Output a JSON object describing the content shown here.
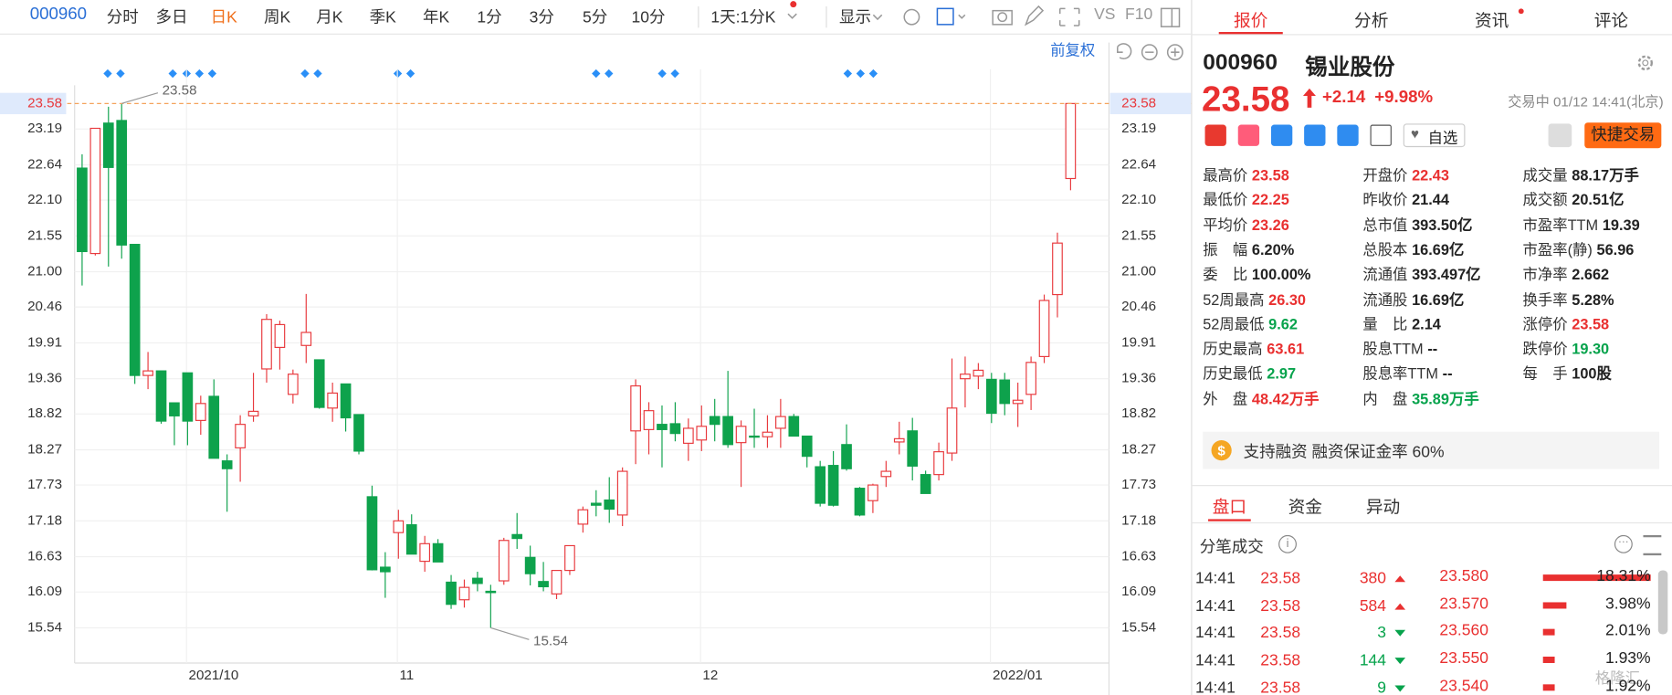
{
  "toolbar": {
    "code": "000960",
    "tabs": [
      "分时",
      "多日",
      "日K",
      "周K",
      "月K",
      "季K",
      "年K",
      "1分",
      "3分",
      "5分",
      "10分",
      "1天:1分K",
      "显示",
      "VS",
      "F10"
    ],
    "active": "日K"
  },
  "chart_data": {
    "type": "candlestick",
    "adjust": "前复权",
    "categories": [
      null,
      null,
      null,
      null,
      null,
      null,
      null,
      null,
      "2021/10",
      null,
      null,
      null,
      null,
      null,
      null,
      null,
      null,
      null,
      null,
      null,
      null,
      null,
      null,
      null,
      "11",
      null,
      null,
      null,
      null,
      null,
      null,
      null,
      null,
      null,
      null,
      null,
      null,
      null,
      null,
      null,
      null,
      null,
      null,
      null,
      null,
      null,
      null,
      "12",
      null,
      null,
      null,
      null,
      null,
      null,
      null,
      null,
      null,
      null,
      null,
      null,
      null,
      null,
      null,
      null,
      null,
      null,
      null,
      null,
      null,
      "2022/01",
      null,
      null,
      null,
      null,
      null,
      null
    ],
    "open": [
      22.59,
      21.28,
      23.28,
      23.32,
      21.42,
      19.41,
      19.48,
      18.99,
      19.45,
      18.72,
      19.09,
      18.1,
      18.3,
      18.79,
      19.51,
      19.84,
      19.12,
      19.87,
      19.65,
      18.91,
      19.28,
      18.81,
      17.55,
      16.47,
      17.0,
      17.12,
      16.56,
      16.83,
      16.24,
      15.97,
      16.3,
      16.1,
      16.26,
      16.97,
      16.62,
      16.25,
      16.06,
      16.42,
      17.13,
      17.45,
      17.5,
      17.27,
      18.56,
      18.58,
      18.66,
      18.67,
      18.37,
      18.42,
      18.78,
      18.78,
      18.38,
      18.48,
      18.47,
      18.6,
      18.78,
      18.48,
      18.01,
      18.03,
      18.35,
      17.68,
      17.49,
      17.86,
      18.39,
      18.56,
      17.89,
      17.89,
      18.22,
      19.36,
      19.4,
      19.35,
      19.34,
      18.98,
      19.12,
      19.7,
      20.65,
      22.43
    ],
    "high": [
      22.8,
      23.2,
      23.53,
      23.58,
      21.42,
      19.77,
      19.48,
      18.99,
      19.45,
      19.1,
      19.35,
      18.2,
      18.8,
      19.45,
      20.35,
      20.25,
      19.5,
      20.66,
      19.65,
      19.3,
      19.28,
      18.81,
      17.72,
      16.7,
      17.35,
      17.28,
      16.95,
      16.9,
      16.35,
      16.28,
      16.4,
      16.2,
      16.92,
      17.3,
      16.8,
      16.55,
      16.42,
      16.8,
      17.4,
      17.65,
      17.85,
      18.0,
      19.35,
      19.0,
      18.95,
      19.0,
      18.75,
      18.95,
      19.05,
      19.48,
      18.72,
      18.9,
      18.8,
      19.05,
      18.82,
      18.48,
      18.1,
      18.25,
      18.66,
      17.7,
      17.75,
      18.1,
      18.7,
      18.76,
      17.95,
      18.38,
      19.67,
      19.7,
      19.6,
      19.45,
      19.45,
      19.3,
      19.7,
      20.65,
      21.6,
      23.58
    ],
    "low": [
      20.79,
      21.25,
      21.08,
      21.2,
      19.28,
      19.2,
      18.67,
      18.34,
      18.34,
      18.5,
      18.14,
      17.32,
      17.78,
      18.7,
      19.3,
      19.5,
      18.98,
      19.6,
      18.9,
      18.7,
      18.55,
      18.2,
      16.42,
      16.0,
      16.6,
      16.67,
      16.4,
      16.55,
      15.83,
      15.85,
      16.1,
      15.54,
      16.2,
      16.75,
      16.19,
      16.1,
      15.98,
      16.35,
      17.0,
      17.25,
      17.15,
      17.1,
      18.05,
      18.2,
      18.0,
      18.4,
      18.1,
      18.25,
      18.4,
      18.3,
      17.7,
      18.3,
      18.3,
      18.3,
      18.48,
      18.0,
      17.4,
      17.4,
      17.95,
      17.25,
      17.3,
      17.7,
      18.2,
      17.8,
      17.6,
      17.8,
      18.1,
      18.92,
      19.2,
      18.68,
      18.8,
      18.62,
      18.88,
      19.6,
      20.3,
      22.25
    ],
    "close": [
      21.31,
      23.2,
      22.6,
      21.41,
      19.41,
      19.48,
      18.71,
      18.79,
      18.71,
      18.98,
      18.14,
      17.98,
      18.66,
      18.86,
      20.27,
      20.19,
      19.43,
      20.07,
      18.92,
      19.14,
      18.76,
      18.25,
      16.43,
      16.4,
      17.18,
      16.67,
      16.83,
      16.55,
      15.9,
      16.16,
      16.22,
      16.08,
      16.88,
      16.91,
      16.37,
      16.17,
      16.42,
      16.8,
      17.35,
      17.42,
      17.36,
      17.94,
      19.25,
      18.87,
      18.58,
      18.52,
      18.6,
      18.63,
      18.66,
      18.35,
      18.63,
      18.47,
      18.54,
      18.78,
      18.48,
      18.17,
      17.45,
      17.42,
      17.98,
      17.27,
      17.73,
      17.94,
      18.44,
      18.02,
      17.6,
      18.24,
      18.91,
      19.43,
      19.49,
      18.83,
      18.98,
      19.03,
      19.61,
      20.56,
      21.44,
      23.58
    ],
    "up_color": "#e8393d",
    "down_color": "#0ea24c",
    "ylim": [
      15.0,
      23.86
    ],
    "yticks": [
      15.54,
      16.09,
      16.63,
      17.18,
      17.73,
      18.27,
      18.82,
      19.36,
      19.91,
      20.46,
      {
        "value": 21,
        "label": "21.00"
      },
      21.55,
      {
        "value": 22.1,
        "label": "22.10"
      },
      22.64,
      23.19
    ],
    "last_price": 23.58,
    "max": 23.58,
    "min": 15.54,
    "grid": true
  },
  "quote": {
    "tabs": [
      "报价",
      "分析",
      "资讯",
      "评论"
    ],
    "code": "000960",
    "name": "锡业股份",
    "price": "23.58",
    "change": "+2.14",
    "change_pct": "+9.98%",
    "status": "交易中 01/12 14:41(北京)",
    "watch": "自选",
    "trade": "快捷交易",
    "colors": {
      "up": "#e93030",
      "down": "#07a34c",
      "plain": "#222222"
    },
    "stats": [
      [
        {
          "label": "最高价",
          "value": "23.58",
          "color": "up"
        },
        {
          "label": "开盘价",
          "value": "22.43",
          "color": "up"
        },
        {
          "label": "成交量",
          "value": "88.17万手",
          "color": "plain"
        }
      ],
      [
        {
          "label": "最低价",
          "value": "22.25",
          "color": "up"
        },
        {
          "label": "昨收价",
          "value": "21.44",
          "color": "plain"
        },
        {
          "label": "成交额",
          "value": "20.51亿",
          "color": "plain"
        }
      ],
      [
        {
          "label": "平均价",
          "value": "23.26",
          "color": "up"
        },
        {
          "label": "总市值",
          "value": "393.50亿",
          "color": "plain"
        },
        {
          "label": "市盈率TTM",
          "value": "19.39",
          "color": "plain"
        }
      ],
      [
        {
          "label": "振　幅",
          "value": "6.20%",
          "color": "plain"
        },
        {
          "label": "总股本",
          "value": "16.69亿",
          "color": "plain"
        },
        {
          "label": "市盈率(静)",
          "value": "56.96",
          "color": "plain"
        }
      ],
      [
        {
          "label": "委　比",
          "value": "100.00%",
          "color": "plain"
        },
        {
          "label": "流通值",
          "value": "393.497亿",
          "color": "plain"
        },
        {
          "label": "市净率",
          "value": "2.662",
          "color": "plain"
        }
      ],
      [
        {
          "label": "52周最高",
          "value": "26.30",
          "color": "up"
        },
        {
          "label": "流通股",
          "value": "16.69亿",
          "color": "plain"
        },
        {
          "label": "换手率",
          "value": "5.28%",
          "color": "plain"
        }
      ],
      [
        {
          "label": "52周最低",
          "value": "9.62",
          "color": "down"
        },
        {
          "label": "量　比",
          "value": "2.14",
          "color": "plain"
        },
        {
          "label": "涨停价",
          "value": "23.58",
          "color": "up"
        }
      ],
      [
        {
          "label": "历史最高",
          "value": "63.61",
          "color": "up"
        },
        {
          "label": "股息TTM",
          "value": "--",
          "color": "plain"
        },
        {
          "label": "跌停价",
          "value": "19.30",
          "color": "down"
        }
      ],
      [
        {
          "label": "历史最低",
          "value": "2.97",
          "color": "down"
        },
        {
          "label": "股息率TTM",
          "value": "--",
          "color": "plain"
        },
        {
          "label": "每　手",
          "value": "100股",
          "color": "plain"
        }
      ],
      [
        {
          "label": "外　盘",
          "value": "48.42万手",
          "color": "up"
        },
        {
          "label": "内　盘",
          "value": "35.89万手",
          "color": "down"
        }
      ]
    ],
    "margin": "支持融资 融资保证金率 60%",
    "subtabs": [
      "盘口",
      "资金",
      "异动"
    ],
    "ticks_title": "分笔成交",
    "trades": [
      {
        "time": "14:41",
        "price": "23.58",
        "volume": "380",
        "side": "up"
      },
      {
        "time": "14:41",
        "price": "23.58",
        "volume": "584",
        "side": "up"
      },
      {
        "time": "14:41",
        "price": "23.58",
        "volume": "3",
        "side": "down"
      },
      {
        "time": "14:41",
        "price": "23.58",
        "volume": "144",
        "side": "down"
      },
      {
        "time": "14:41",
        "price": "23.58",
        "volume": "9",
        "side": "down"
      }
    ],
    "levels": [
      {
        "price": "23.580",
        "pct": 18.31,
        "pct_label": "18.31%"
      },
      {
        "price": "23.570",
        "pct": 3.98,
        "pct_label": "3.98%"
      },
      {
        "price": "23.560",
        "pct": 2.01,
        "pct_label": "2.01%"
      },
      {
        "price": "23.550",
        "pct": 1.93,
        "pct_label": "1.93%"
      },
      {
        "price": "23.540",
        "pct": 1.92,
        "pct_label": "1.92%"
      }
    ],
    "watermark": "格隆汇"
  }
}
